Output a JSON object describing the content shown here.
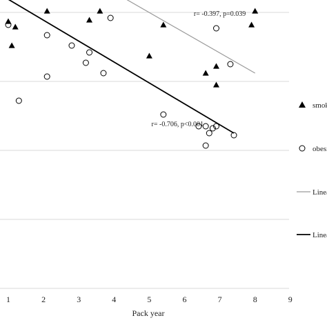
{
  "chart_data": {
    "type": "scatter",
    "xlabel": "Pack year",
    "ylabel": "",
    "xlim": [
      1,
      9
    ],
    "x_ticks": [
      "1",
      "2",
      "3",
      "4",
      "5",
      "6",
      "7",
      "8",
      "9"
    ],
    "grid": "horizontal",
    "legend_position": "right",
    "series": [
      {
        "name": "smoke",
        "marker": "triangle",
        "color": "#000000",
        "points": [
          [
            1.1,
            4.25
          ],
          [
            1.2,
            3.82
          ],
          [
            1.1,
            3.55
          ],
          [
            1.0,
            3.9
          ],
          [
            2.2,
            4.7
          ],
          [
            2.1,
            4.05
          ],
          [
            2.9,
            4.8
          ],
          [
            3.3,
            3.92
          ],
          [
            3.6,
            4.05
          ],
          [
            3.9,
            4.35
          ],
          [
            5.4,
            3.85
          ],
          [
            5.0,
            3.4
          ],
          [
            6.6,
            4.3
          ],
          [
            6.6,
            3.15
          ],
          [
            6.9,
            3.25
          ],
          [
            6.9,
            2.98
          ],
          [
            7.9,
            3.85
          ],
          [
            8.0,
            4.05
          ]
        ]
      },
      {
        "name": "obesity",
        "marker": "open-circle",
        "color": "#000000",
        "points": [
          [
            1.0,
            3.85
          ],
          [
            1.3,
            2.75
          ],
          [
            2.1,
            3.7
          ],
          [
            2.1,
            3.1
          ],
          [
            2.8,
            3.55
          ],
          [
            3.3,
            3.45
          ],
          [
            3.2,
            3.3
          ],
          [
            3.7,
            3.15
          ],
          [
            3.9,
            3.95
          ],
          [
            5.4,
            2.55
          ],
          [
            6.4,
            2.38
          ],
          [
            6.6,
            2.38
          ],
          [
            6.8,
            2.35
          ],
          [
            6.7,
            2.28
          ],
          [
            6.9,
            2.38
          ],
          [
            6.6,
            2.1
          ],
          [
            7.4,
            2.25
          ],
          [
            6.9,
            3.8
          ],
          [
            7.3,
            3.28
          ]
        ]
      },
      {
        "name": "Linear (smoke)",
        "type": "line",
        "color": "#999999",
        "points": [
          [
            1.0,
            5.2
          ],
          [
            8.0,
            3.15
          ]
        ]
      },
      {
        "name": "Linear (obesity)",
        "type": "line",
        "color": "#000000",
        "points": [
          [
            1.0,
            4.22
          ],
          [
            7.4,
            2.28
          ]
        ]
      }
    ],
    "annotations": [
      {
        "text": "r= -0.397,  p=0.039",
        "x": 7.0,
        "y": 3.98
      },
      {
        "text": "r= -0.706,  p<0.001",
        "x": 5.8,
        "y": 2.38
      }
    ],
    "legend_entries": [
      "smoke",
      "obesi",
      "Linea",
      "Linea"
    ]
  }
}
